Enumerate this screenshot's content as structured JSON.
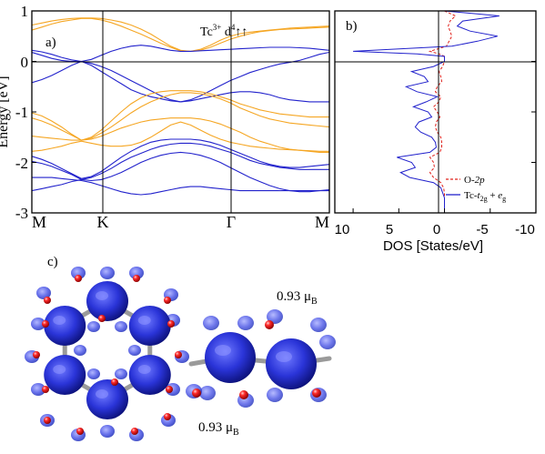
{
  "colors": {
    "orange": "#f5a623",
    "blue": "#2222cc",
    "dos_red": "#e0201a",
    "blob_blue": "#2a34d8",
    "bond_gray": "#a9a9a9",
    "atom_red": "#e01010"
  },
  "chart_data": [
    {
      "type": "line",
      "panel_label": "a)",
      "annotation": {
        "base": "Tc",
        "sup": "3+",
        "middle": " d",
        "sup2": "4",
        "arrows": "↑↑"
      },
      "ylabel": "Energy [eV]",
      "ylim": [
        -3,
        1
      ],
      "yticks": [
        "-3",
        "-2",
        "-1",
        "0",
        "1"
      ],
      "xticks": [
        "M",
        "K",
        "Γ",
        "M"
      ],
      "x": [
        0,
        0.1,
        0.2,
        0.3,
        0.4,
        0.5,
        0.6,
        0.7,
        0.8,
        0.9,
        1.0,
        1.1,
        1.2,
        1.3,
        1.4,
        1.5,
        1.6,
        1.7,
        1.8,
        1.9,
        2.0,
        2.1,
        2.2,
        2.3,
        2.4,
        2.5,
        2.6,
        2.7,
        2.8,
        2.9,
        3.0
      ],
      "series": [
        {
          "color": "orange",
          "values": [
            0.72,
            0.76,
            0.8,
            0.83,
            0.85,
            0.86,
            0.86,
            0.85,
            0.82,
            0.78,
            0.72,
            0.64,
            0.54,
            0.42,
            0.3,
            0.22,
            0.2,
            0.24,
            0.32,
            0.42,
            0.5,
            0.55,
            0.58,
            0.6,
            0.62,
            0.64,
            0.66,
            0.67,
            0.68,
            0.69,
            0.7
          ]
        },
        {
          "color": "orange",
          "values": [
            0.62,
            0.68,
            0.74,
            0.79,
            0.82,
            0.85,
            0.85,
            0.82,
            0.77,
            0.7,
            0.62,
            0.54,
            0.45,
            0.36,
            0.28,
            0.21,
            0.2,
            0.22,
            0.28,
            0.36,
            0.44,
            0.5,
            0.55,
            0.59,
            0.61,
            0.63,
            0.64,
            0.65,
            0.66,
            0.67,
            0.68
          ]
        },
        {
          "color": "blue",
          "values": [
            0.22,
            0.19,
            0.14,
            0.08,
            0.03,
            0.0,
            0.04,
            0.12,
            0.2,
            0.26,
            0.3,
            0.32,
            0.3,
            0.26,
            0.22,
            0.2,
            0.2,
            0.21,
            0.22,
            0.23,
            0.24,
            0.25,
            0.26,
            0.27,
            0.28,
            0.28,
            0.28,
            0.27,
            0.26,
            0.24,
            0.22
          ]
        },
        {
          "color": "blue",
          "values": [
            0.18,
            0.12,
            0.06,
            0.02,
            0.0,
            0.0,
            -0.04,
            -0.1,
            -0.18,
            -0.28,
            -0.38,
            -0.48,
            -0.58,
            -0.68,
            -0.76,
            -0.8,
            -0.76,
            -0.68,
            -0.58,
            -0.48,
            -0.38,
            -0.3,
            -0.22,
            -0.16,
            -0.1,
            -0.05,
            -0.02,
            0.02,
            0.08,
            0.14,
            0.18
          ]
        },
        {
          "color": "blue",
          "values": [
            -0.42,
            -0.36,
            -0.28,
            -0.18,
            -0.08,
            0.0,
            -0.08,
            -0.2,
            -0.32,
            -0.44,
            -0.56,
            -0.64,
            -0.7,
            -0.74,
            -0.78,
            -0.8,
            -0.78,
            -0.74,
            -0.7,
            -0.66,
            -0.62,
            -0.6,
            -0.6,
            -0.62,
            -0.66,
            -0.72,
            -0.76,
            -0.78,
            -0.8,
            -0.8,
            -0.8
          ]
        },
        {
          "color": "orange",
          "values": [
            -1.02,
            -1.08,
            -1.18,
            -1.3,
            -1.44,
            -1.56,
            -1.5,
            -1.36,
            -1.18,
            -1.0,
            -0.84,
            -0.72,
            -0.64,
            -0.6,
            -0.58,
            -0.58,
            -0.58,
            -0.6,
            -0.64,
            -0.7,
            -0.76,
            -0.84,
            -0.9,
            -0.96,
            -1.0,
            -1.04,
            -1.06,
            -1.08,
            -1.1,
            -1.1,
            -1.1
          ]
        },
        {
          "color": "orange",
          "values": [
            -1.12,
            -1.18,
            -1.26,
            -1.36,
            -1.46,
            -1.56,
            -1.52,
            -1.42,
            -1.3,
            -1.16,
            -1.02,
            -0.9,
            -0.8,
            -0.72,
            -0.66,
            -0.62,
            -0.62,
            -0.64,
            -0.68,
            -0.74,
            -0.82,
            -0.92,
            -1.0,
            -1.08,
            -1.14,
            -1.18,
            -1.22,
            -1.24,
            -1.26,
            -1.28,
            -1.3
          ]
        },
        {
          "color": "orange",
          "values": [
            -1.48,
            -1.5,
            -1.52,
            -1.54,
            -1.56,
            -1.56,
            -1.54,
            -1.48,
            -1.4,
            -1.32,
            -1.26,
            -1.2,
            -1.16,
            -1.14,
            -1.12,
            -1.12,
            -1.12,
            -1.14,
            -1.18,
            -1.24,
            -1.32,
            -1.4,
            -1.5,
            -1.58,
            -1.64,
            -1.7,
            -1.74,
            -1.76,
            -1.78,
            -1.8,
            -1.8
          ]
        },
        {
          "color": "orange",
          "values": [
            -1.78,
            -1.76,
            -1.72,
            -1.68,
            -1.62,
            -1.58,
            -1.62,
            -1.66,
            -1.68,
            -1.68,
            -1.66,
            -1.6,
            -1.5,
            -1.38,
            -1.26,
            -1.2,
            -1.26,
            -1.36,
            -1.46,
            -1.54,
            -1.6,
            -1.64,
            -1.68,
            -1.7,
            -1.72,
            -1.74,
            -1.75,
            -1.76,
            -1.77,
            -1.78,
            -1.78
          ]
        },
        {
          "color": "blue",
          "values": [
            -1.88,
            -1.94,
            -2.02,
            -2.12,
            -2.22,
            -2.32,
            -2.28,
            -2.18,
            -2.04,
            -1.9,
            -1.78,
            -1.68,
            -1.6,
            -1.56,
            -1.54,
            -1.54,
            -1.54,
            -1.56,
            -1.6,
            -1.66,
            -1.74,
            -1.82,
            -1.9,
            -1.98,
            -2.04,
            -2.08,
            -2.1,
            -2.1,
            -2.08,
            -2.06,
            -2.04
          ]
        },
        {
          "color": "blue",
          "values": [
            -1.98,
            -2.02,
            -2.08,
            -2.16,
            -2.24,
            -2.34,
            -2.3,
            -2.22,
            -2.12,
            -2.0,
            -1.9,
            -1.82,
            -1.74,
            -1.68,
            -1.64,
            -1.62,
            -1.62,
            -1.64,
            -1.68,
            -1.74,
            -1.8,
            -1.88,
            -1.96,
            -2.02,
            -2.06,
            -2.1,
            -2.12,
            -2.14,
            -2.14,
            -2.14,
            -2.14
          ]
        },
        {
          "color": "blue",
          "values": [
            -2.56,
            -2.52,
            -2.48,
            -2.44,
            -2.38,
            -2.34,
            -2.36,
            -2.34,
            -2.28,
            -2.2,
            -2.1,
            -2.0,
            -1.92,
            -1.86,
            -1.82,
            -1.8,
            -1.82,
            -1.86,
            -1.92,
            -2.0,
            -2.1,
            -2.2,
            -2.3,
            -2.38,
            -2.46,
            -2.52,
            -2.56,
            -2.58,
            -2.58,
            -2.56,
            -2.54
          ]
        },
        {
          "color": "blue",
          "values": [
            -2.3,
            -2.3,
            -2.3,
            -2.32,
            -2.34,
            -2.36,
            -2.4,
            -2.46,
            -2.52,
            -2.58,
            -2.62,
            -2.64,
            -2.62,
            -2.58,
            -2.54,
            -2.5,
            -2.48,
            -2.48,
            -2.5,
            -2.52,
            -2.54,
            -2.56,
            -2.56,
            -2.56,
            -2.56,
            -2.56,
            -2.56,
            -2.56,
            -2.56,
            -2.56,
            -2.56
          ]
        }
      ]
    },
    {
      "type": "line",
      "panel_label": "b)",
      "xlabel": "DOS [States/eV]",
      "xticks": [
        "10",
        "5",
        "0",
        "-5",
        "-10"
      ],
      "xlim": [
        12,
        -10
      ],
      "ylim": [
        -3,
        1
      ],
      "legend": [
        {
          "text": "O-",
          "italic": "2p",
          "color": "dos_red",
          "dashed": true
        },
        {
          "text": "Tc-",
          "italic": "t",
          "sub": "2g",
          "text2": " + ",
          "italic2": "e",
          "sub2": "g",
          "color": "blue",
          "dashed": false
        }
      ],
      "legend_position": "bottom-right",
      "energy": [
        1.0,
        0.9,
        0.8,
        0.7,
        0.6,
        0.5,
        0.4,
        0.3,
        0.2,
        0.15,
        0.1,
        0.0,
        -0.1,
        -0.2,
        -0.3,
        -0.4,
        -0.5,
        -0.6,
        -0.7,
        -0.8,
        -0.9,
        -1.0,
        -1.1,
        -1.2,
        -1.3,
        -1.4,
        -1.5,
        -1.6,
        -1.7,
        -1.8,
        -1.9,
        -2.0,
        -2.1,
        -2.2,
        -2.3,
        -2.4,
        -2.5,
        -2.6,
        -2.7,
        -2.8,
        -2.9,
        -3.0
      ],
      "series": [
        {
          "name": "Tc-t2g + eg",
          "color": "blue",
          "dos": [
            0.0,
            -6.0,
            -2.0,
            -1.4,
            -2.8,
            -5.8,
            -3.6,
            -0.8,
            10.0,
            3.0,
            0.0,
            0.0,
            1.2,
            3.6,
            2.2,
            1.8,
            4.2,
            3.0,
            0.8,
            2.0,
            3.4,
            1.8,
            1.4,
            2.8,
            3.2,
            2.6,
            1.4,
            1.0,
            0.9,
            1.6,
            5.2,
            3.6,
            3.2,
            4.8,
            3.8,
            1.2,
            0.4,
            0.2,
            0.0,
            0.0,
            0.0,
            0.0
          ]
        },
        {
          "name": "O-2p",
          "color": "dos_red",
          "dos": [
            0.0,
            -1.2,
            -0.6,
            -0.4,
            -0.6,
            -0.8,
            -0.5,
            -0.2,
            1.6,
            0.6,
            0.0,
            0.0,
            0.2,
            0.6,
            0.4,
            0.3,
            0.8,
            1.0,
            0.4,
            0.6,
            1.2,
            0.8,
            0.5,
            0.9,
            1.0,
            0.8,
            0.4,
            0.3,
            0.3,
            0.5,
            1.6,
            1.2,
            1.1,
            1.6,
            1.2,
            0.4,
            0.1,
            0.0,
            0.0,
            0.0,
            0.0,
            0.0
          ]
        }
      ]
    }
  ],
  "panel_c": {
    "label": "c)",
    "moment_top": {
      "value": "0.93 ",
      "unit": "μ",
      "sub": "B"
    },
    "moment_bottom": {
      "value": "0.93 ",
      "unit": "μ",
      "sub": "B"
    }
  }
}
